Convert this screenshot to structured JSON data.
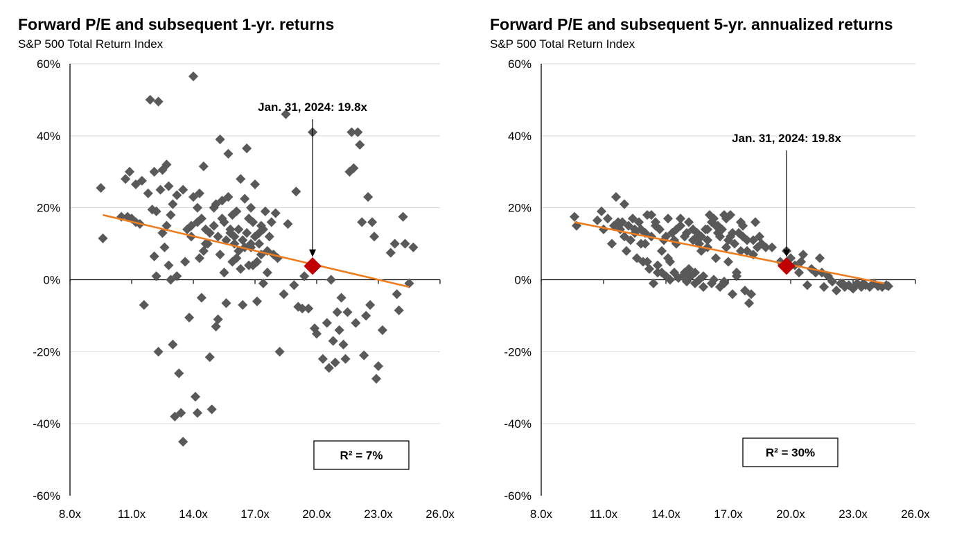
{
  "colors": {
    "points": "#595959",
    "trend": "#ed7d1f",
    "highlight": "#c00000",
    "grid": "#d9d9d9",
    "axis": "#000000"
  },
  "chart_data": [
    {
      "type": "scatter",
      "title": "Forward P/E and subsequent 1-yr. returns",
      "subtitle": "S&P 500 Total Return Index",
      "x_ticks": [
        "8.0x",
        "11.0x",
        "14.0x",
        "17.0x",
        "20.0x",
        "23.0x",
        "26.0x"
      ],
      "y_ticks": [
        "60%",
        "40%",
        "20%",
        "0%",
        "-20%",
        "-40%",
        "-60%"
      ],
      "xlim": [
        8,
        26
      ],
      "ylim": [
        -60,
        60
      ],
      "grid": "horizontal",
      "annotation": {
        "label": "Jan. 31, 2024: 19.8x",
        "x": 19.8,
        "y": 3.8
      },
      "current_point": {
        "x": 19.8,
        "y": 3.8
      },
      "trendline": {
        "x": [
          9.6,
          24.5
        ],
        "y": [
          18,
          -2
        ]
      },
      "r_squared_label": "R² = 7%",
      "points": [
        [
          9.5,
          25.5
        ],
        [
          9.6,
          11.5
        ],
        [
          10.7,
          28
        ],
        [
          10.9,
          30
        ],
        [
          11.2,
          16
        ],
        [
          11.2,
          26.5
        ],
        [
          10.8,
          17.5
        ],
        [
          11.4,
          15.5
        ],
        [
          11.6,
          -7
        ],
        [
          11.8,
          24
        ],
        [
          11.9,
          50
        ],
        [
          12.1,
          30
        ],
        [
          12.2,
          19
        ],
        [
          12.3,
          49.5
        ],
        [
          12.4,
          25
        ],
        [
          12.5,
          30.5
        ],
        [
          12.6,
          9
        ],
        [
          12.7,
          32
        ],
        [
          12.8,
          26
        ],
        [
          12.9,
          0
        ],
        [
          12.9,
          18
        ],
        [
          12.1,
          6.5
        ],
        [
          12.2,
          1
        ],
        [
          12.3,
          -20
        ],
        [
          13.0,
          -18
        ],
        [
          13.1,
          -38
        ],
        [
          13.2,
          23.5
        ],
        [
          13.3,
          -26
        ],
        [
          13.4,
          -37
        ],
        [
          13.5,
          -45
        ],
        [
          13.6,
          5
        ],
        [
          13.8,
          -10.5
        ],
        [
          13.9,
          15
        ],
        [
          14.0,
          56.5
        ],
        [
          14.1,
          -32.5
        ],
        [
          14.2,
          -37
        ],
        [
          14.3,
          24
        ],
        [
          14.4,
          -5
        ],
        [
          14.5,
          31.5
        ],
        [
          14.6,
          10
        ],
        [
          14.8,
          -21.5
        ],
        [
          14.9,
          -36
        ],
        [
          15.0,
          20
        ],
        [
          15.1,
          -13
        ],
        [
          15.2,
          -11
        ],
        [
          15.3,
          39
        ],
        [
          15.4,
          22
        ],
        [
          15.5,
          16
        ],
        [
          15.6,
          -6.5
        ],
        [
          15.7,
          35
        ],
        [
          15.8,
          14
        ],
        [
          15.9,
          5
        ],
        [
          16.0,
          12
        ],
        [
          16.1,
          19
        ],
        [
          16.2,
          8
        ],
        [
          16.3,
          28
        ],
        [
          16.4,
          -7
        ],
        [
          16.5,
          22.5
        ],
        [
          16.6,
          36.5
        ],
        [
          16.7,
          4
        ],
        [
          16.8,
          10
        ],
        [
          16.9,
          16
        ],
        [
          17.0,
          26.5
        ],
        [
          17.1,
          -6
        ],
        [
          17.2,
          13
        ],
        [
          17.3,
          7
        ],
        [
          17.4,
          -1
        ],
        [
          17.5,
          19
        ],
        [
          17.6,
          2
        ],
        [
          17.8,
          16
        ],
        [
          17.9,
          7
        ],
        [
          18.0,
          18.5
        ],
        [
          18.2,
          -20
        ],
        [
          18.4,
          -4
        ],
        [
          18.5,
          46
        ],
        [
          18.6,
          15.5
        ],
        [
          18.9,
          -1.5
        ],
        [
          19.0,
          24.5
        ],
        [
          19.1,
          -7.5
        ],
        [
          19.3,
          -8
        ],
        [
          19.4,
          1
        ],
        [
          19.6,
          -8
        ],
        [
          19.8,
          41
        ],
        [
          19.9,
          -13.5
        ],
        [
          20.0,
          -15
        ],
        [
          20.3,
          -22
        ],
        [
          20.5,
          -12
        ],
        [
          20.6,
          -24.5
        ],
        [
          20.7,
          0
        ],
        [
          20.8,
          -17
        ],
        [
          20.9,
          -23
        ],
        [
          21.0,
          -9
        ],
        [
          21.1,
          -14
        ],
        [
          21.2,
          -5
        ],
        [
          21.3,
          -18
        ],
        [
          21.4,
          -22
        ],
        [
          21.5,
          -9
        ],
        [
          21.6,
          30
        ],
        [
          21.7,
          41
        ],
        [
          21.8,
          31
        ],
        [
          21.9,
          -12
        ],
        [
          22.0,
          41
        ],
        [
          22.1,
          37.5
        ],
        [
          22.2,
          16
        ],
        [
          22.3,
          -21
        ],
        [
          22.4,
          -10
        ],
        [
          22.5,
          23
        ],
        [
          22.6,
          -7
        ],
        [
          22.7,
          16
        ],
        [
          22.8,
          12
        ],
        [
          22.9,
          -27.5
        ],
        [
          23.0,
          -24
        ],
        [
          23.2,
          -14
        ],
        [
          23.6,
          7.5
        ],
        [
          23.8,
          10
        ],
        [
          23.9,
          -4
        ],
        [
          24.0,
          -8.5
        ],
        [
          24.2,
          17.5
        ],
        [
          24.3,
          10
        ],
        [
          24.5,
          -1
        ],
        [
          24.7,
          9
        ],
        [
          10.5,
          17.5
        ],
        [
          11.0,
          17
        ],
        [
          11.5,
          27.5
        ],
        [
          12.0,
          19.5
        ],
        [
          12.5,
          13
        ],
        [
          12.7,
          15
        ],
        [
          12.8,
          4
        ],
        [
          13.0,
          21
        ],
        [
          13.2,
          1
        ],
        [
          13.5,
          25
        ],
        [
          13.7,
          14
        ],
        [
          14.0,
          23
        ],
        [
          14.2,
          16
        ],
        [
          14.4,
          17
        ],
        [
          14.6,
          14
        ],
        [
          14.8,
          13
        ],
        [
          15.0,
          15
        ],
        [
          15.2,
          12
        ],
        [
          15.4,
          17
        ],
        [
          15.6,
          11
        ],
        [
          15.8,
          13
        ],
        [
          16.0,
          10
        ],
        [
          16.2,
          14
        ],
        [
          16.4,
          11
        ],
        [
          16.6,
          13
        ],
        [
          16.8,
          9
        ],
        [
          17.0,
          12
        ],
        [
          17.2,
          10
        ],
        [
          17.4,
          14
        ],
        [
          17.6,
          8
        ],
        [
          14.2,
          20
        ],
        [
          14.5,
          8
        ],
        [
          15.1,
          21
        ],
        [
          15.5,
          2
        ],
        [
          15.9,
          18
        ],
        [
          16.3,
          3
        ],
        [
          16.7,
          17
        ],
        [
          17.1,
          5
        ],
        [
          17.7,
          12
        ],
        [
          18.1,
          6
        ],
        [
          13.9,
          12
        ],
        [
          14.7,
          10
        ],
        [
          15.3,
          7
        ],
        [
          16.1,
          6
        ],
        [
          16.5,
          9
        ],
        [
          16.9,
          4
        ],
        [
          17.3,
          15
        ],
        [
          14.3,
          6
        ],
        [
          15.7,
          23
        ],
        [
          16.8,
          20
        ]
      ]
    },
    {
      "type": "scatter",
      "title": "Forward P/E and subsequent 5-yr. annualized returns",
      "subtitle": "S&P 500 Total Return Index",
      "x_ticks": [
        "8.0x",
        "11.0x",
        "14.0x",
        "17.0x",
        "20.0x",
        "23.0x",
        "26.0x"
      ],
      "y_ticks": [
        "60%",
        "40%",
        "20%",
        "0%",
        "-20%",
        "-40%",
        "-60%"
      ],
      "xlim": [
        8,
        26
      ],
      "ylim": [
        -60,
        60
      ],
      "grid": "horizontal",
      "annotation": {
        "label": "Jan. 31, 2024: 19.8x",
        "x": 19.8,
        "y": 3.8
      },
      "current_point": {
        "x": 19.8,
        "y": 3.8
      },
      "trendline": {
        "x": [
          9.6,
          24.5
        ],
        "y": [
          16,
          -1
        ]
      },
      "r_squared_label": "R² = 30%",
      "points": [
        [
          9.6,
          17.5
        ],
        [
          9.7,
          15
        ],
        [
          10.7,
          16.5
        ],
        [
          10.9,
          19
        ],
        [
          11.0,
          14
        ],
        [
          11.2,
          17
        ],
        [
          11.4,
          10
        ],
        [
          11.5,
          15
        ],
        [
          11.6,
          23
        ],
        [
          11.8,
          14
        ],
        [
          11.9,
          16
        ],
        [
          12.0,
          21
        ],
        [
          12.1,
          8
        ],
        [
          12.2,
          15
        ],
        [
          12.3,
          11
        ],
        [
          12.4,
          17
        ],
        [
          12.5,
          13
        ],
        [
          12.6,
          6
        ],
        [
          12.7,
          16
        ],
        [
          12.8,
          14
        ],
        [
          12.9,
          5
        ],
        [
          13.0,
          10
        ],
        [
          13.1,
          18
        ],
        [
          13.2,
          3
        ],
        [
          13.3,
          12
        ],
        [
          13.4,
          -1
        ],
        [
          13.5,
          16
        ],
        [
          13.6,
          4
        ],
        [
          13.7,
          14
        ],
        [
          13.8,
          2
        ],
        [
          13.9,
          11
        ],
        [
          14.0,
          1
        ],
        [
          14.1,
          17
        ],
        [
          14.2,
          0
        ],
        [
          14.3,
          13
        ],
        [
          14.4,
          2
        ],
        [
          14.5,
          10
        ],
        [
          14.6,
          0.5
        ],
        [
          14.7,
          15
        ],
        [
          14.8,
          1
        ],
        [
          14.9,
          12
        ],
        [
          15.0,
          -0.5
        ],
        [
          15.1,
          16
        ],
        [
          15.2,
          1
        ],
        [
          15.3,
          11
        ],
        [
          15.4,
          -1
        ],
        [
          15.5,
          13
        ],
        [
          15.6,
          0
        ],
        [
          15.7,
          12
        ],
        [
          15.8,
          -2
        ],
        [
          15.9,
          14
        ],
        [
          16.0,
          11
        ],
        [
          16.1,
          18
        ],
        [
          16.2,
          -1
        ],
        [
          16.3,
          17
        ],
        [
          16.4,
          6
        ],
        [
          16.5,
          15
        ],
        [
          16.6,
          -2
        ],
        [
          16.7,
          14
        ],
        [
          16.8,
          -0.5
        ],
        [
          16.9,
          17
        ],
        [
          17.0,
          5
        ],
        [
          17.1,
          12
        ],
        [
          17.2,
          -4
        ],
        [
          17.3,
          10
        ],
        [
          17.4,
          1
        ],
        [
          17.5,
          13
        ],
        [
          17.6,
          8
        ],
        [
          17.7,
          15
        ],
        [
          17.8,
          -3
        ],
        [
          17.9,
          11
        ],
        [
          18.0,
          -6.5
        ],
        [
          18.1,
          -4
        ],
        [
          18.2,
          7
        ],
        [
          18.4,
          9
        ],
        [
          18.6,
          10
        ],
        [
          19.1,
          9
        ],
        [
          19.5,
          5
        ],
        [
          19.8,
          8
        ],
        [
          20.0,
          6
        ],
        [
          20.2,
          4
        ],
        [
          20.4,
          2
        ],
        [
          20.6,
          7
        ],
        [
          20.8,
          -1.5
        ],
        [
          21.0,
          3
        ],
        [
          21.2,
          2
        ],
        [
          21.4,
          6
        ],
        [
          21.6,
          -2
        ],
        [
          21.8,
          1
        ],
        [
          22.0,
          -0.5
        ],
        [
          22.2,
          -3
        ],
        [
          22.4,
          -1
        ],
        [
          22.6,
          -2
        ],
        [
          22.8,
          -1.5
        ],
        [
          23.0,
          -2.5
        ],
        [
          23.2,
          -1
        ],
        [
          23.4,
          -2
        ],
        [
          23.6,
          -1.5
        ],
        [
          23.8,
          -2
        ],
        [
          24.0,
          -1
        ],
        [
          24.2,
          -1.8
        ],
        [
          24.4,
          -2
        ],
        [
          24.6,
          -1.5
        ],
        [
          12.0,
          12
        ],
        [
          12.5,
          14
        ],
        [
          13.0,
          13
        ],
        [
          13.5,
          15
        ],
        [
          14.0,
          12
        ],
        [
          14.5,
          14
        ],
        [
          15.0,
          13
        ],
        [
          15.5,
          12
        ],
        [
          16.0,
          14
        ],
        [
          16.5,
          13
        ],
        [
          17.0,
          11
        ],
        [
          11.7,
          16
        ],
        [
          13.3,
          18
        ],
        [
          14.7,
          17
        ],
        [
          16.2,
          16
        ],
        [
          13.8,
          8
        ],
        [
          14.2,
          5
        ],
        [
          15.1,
          3
        ],
        [
          15.4,
          2
        ],
        [
          15.8,
          1
        ],
        [
          16.3,
          0
        ],
        [
          16.8,
          -1
        ],
        [
          17.4,
          2
        ],
        [
          13.6,
          2
        ],
        [
          14.9,
          2
        ],
        [
          16.6,
          12
        ],
        [
          17.9,
          8
        ],
        [
          18.5,
          12
        ],
        [
          18.8,
          9
        ],
        [
          19.6,
          4
        ],
        [
          20.5,
          5
        ],
        [
          21.5,
          2
        ],
        [
          22.5,
          -1
        ],
        [
          23.5,
          -1
        ],
        [
          24.7,
          -1.8
        ],
        [
          14.4,
          11
        ],
        [
          15.6,
          10
        ],
        [
          16.9,
          9
        ],
        [
          17.7,
          12
        ],
        [
          18.2,
          11
        ],
        [
          14.1,
          6
        ],
        [
          13.1,
          5
        ],
        [
          12.8,
          10
        ],
        [
          15.3,
          14
        ],
        [
          16.4,
          15
        ],
        [
          17.2,
          13
        ],
        [
          18.3,
          16
        ],
        [
          17.6,
          16
        ],
        [
          16.8,
          18
        ],
        [
          17.1,
          18
        ],
        [
          16.0,
          9
        ],
        [
          15.7,
          8
        ]
      ]
    }
  ]
}
